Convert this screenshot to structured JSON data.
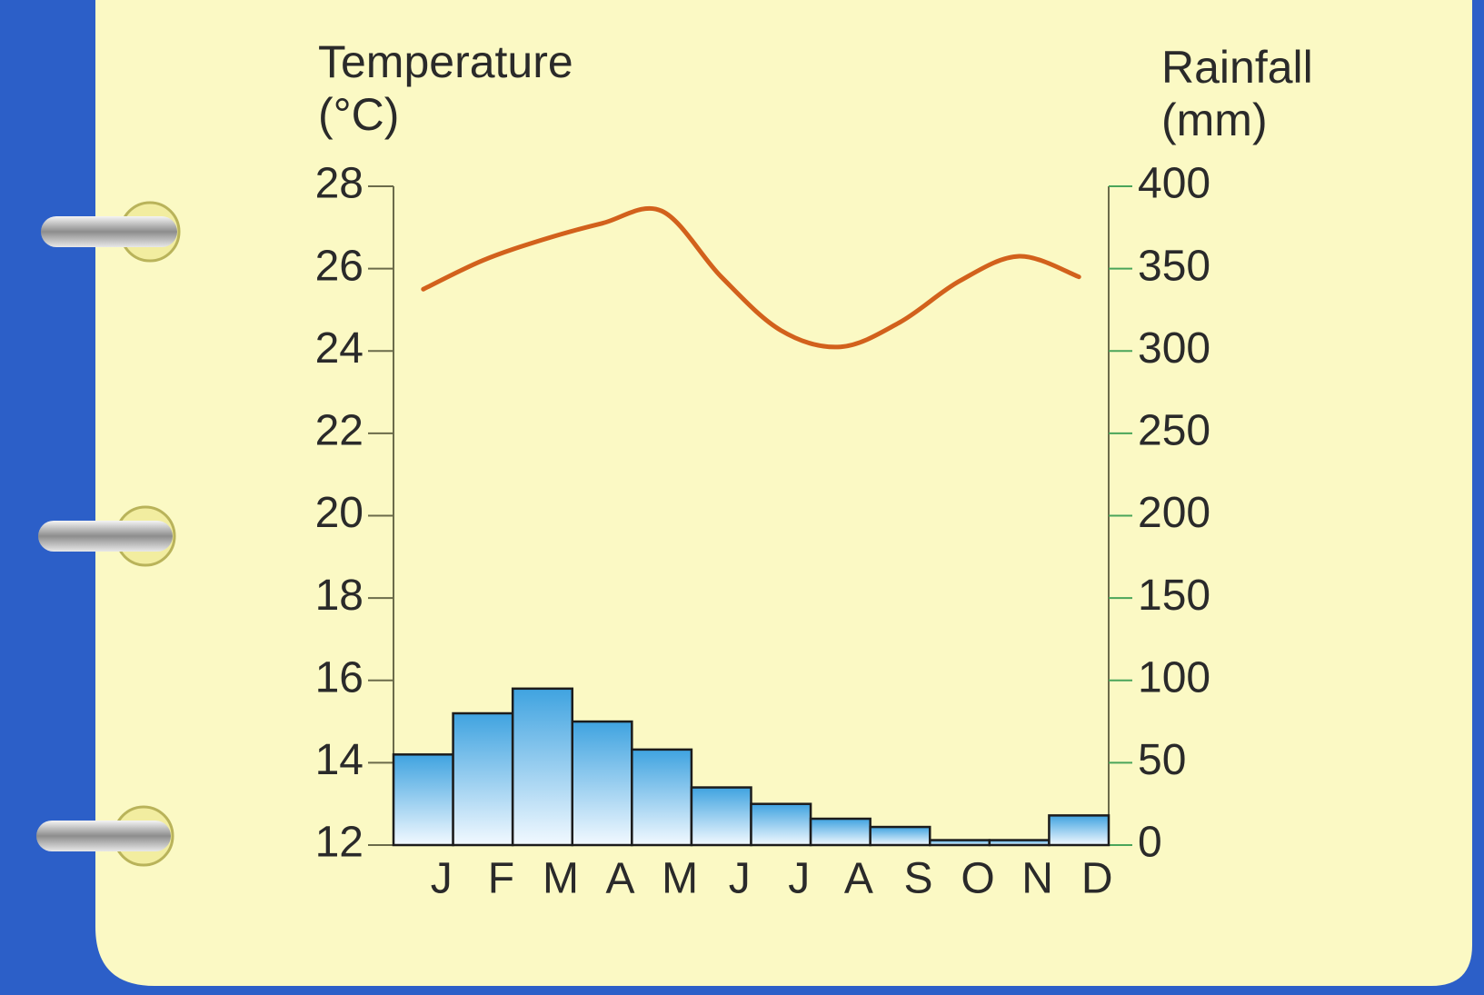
{
  "chart_data": {
    "type": "combo",
    "y_label": [
      "Temperature",
      "(°C)"
    ],
    "y2_label": [
      "Rainfall",
      "(mm)"
    ],
    "categories": [
      "J",
      "F",
      "M",
      "A",
      "M",
      "J",
      "J",
      "A",
      "S",
      "O",
      "N",
      "D"
    ],
    "series": [
      {
        "name": "Rainfall",
        "type": "bar",
        "axis": "y2",
        "color": "#3fa3e0",
        "values": [
          55,
          80,
          95,
          75,
          58,
          35,
          25,
          16,
          11,
          3,
          3,
          18
        ]
      },
      {
        "name": "Temperature",
        "type": "line",
        "axis": "y",
        "color": "#d2611c",
        "values": [
          25.5,
          26.2,
          26.7,
          27.1,
          27.4,
          25.8,
          24.5,
          24.1,
          24.7,
          25.7,
          26.3,
          25.8
        ]
      }
    ],
    "ylim": [
      12,
      28
    ],
    "yticks": [
      12,
      14,
      16,
      18,
      20,
      22,
      24,
      26,
      28
    ],
    "y2lim": [
      0,
      400
    ],
    "y2ticks": [
      0,
      50,
      100,
      150,
      200,
      250,
      300,
      350,
      400
    ],
    "grid": false
  }
}
